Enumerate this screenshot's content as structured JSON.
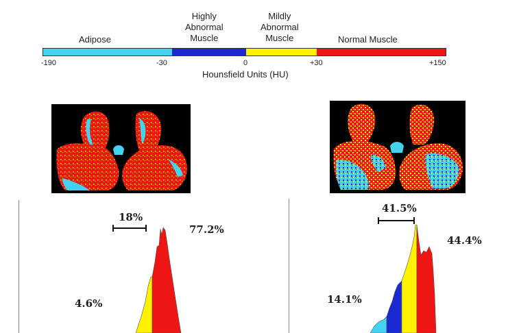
{
  "colorbar": {
    "segments": [
      {
        "label": "Adipose",
        "color": "#45d2f0",
        "from": -190,
        "to": -30
      },
      {
        "label_line1": "Highly",
        "label_line2": "Abnormal",
        "label_line3": "Muscle",
        "color": "#1a2ad0",
        "from": -30,
        "to": 0
      },
      {
        "label_line1": "Mildly",
        "label_line2": "Abnormal",
        "label_line3": "Muscle",
        "color": "#fff200",
        "from": 0,
        "to": 30
      },
      {
        "label": "Normal Muscle",
        "color": "#ee1515",
        "from": 30,
        "to": 150
      }
    ],
    "ticks": [
      "-190",
      "-30",
      "0",
      "+30",
      "+150"
    ],
    "axis_title": "Hounsfield Units (HU)"
  },
  "left_histogram": {
    "bracket_label": "18%",
    "label_normal": "77.2%",
    "label_adipose": "4.6%"
  },
  "right_histogram": {
    "bracket_label": "41.5%",
    "label_normal": "44.4%",
    "label_adipose": "14.1%"
  },
  "colors": {
    "adipose": "#45d2f0",
    "highly_abnormal": "#1a2ad0",
    "mildly_abnormal": "#fff200",
    "normal": "#ee1515",
    "ct_background": "#000000"
  }
}
